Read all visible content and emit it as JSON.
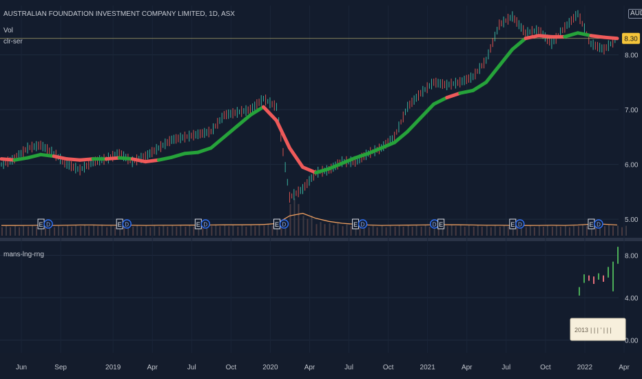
{
  "header": {
    "symbol": "AUSTRALIAN FOUNDATION INVESTMENT COMPANY LIMITED, 1D, ASX",
    "indicator_1": "Vol",
    "indicator_2": "clr-ser",
    "currency": "AUD"
  },
  "lower_pane": {
    "title": "mans-lng-rng",
    "tooltip_text": "2013",
    "tooltip_marks": "| | | '  |  |  |"
  },
  "colors": {
    "background": "#131c2d",
    "grid": "#1f2b3e",
    "rising": "#26a33a",
    "falling": "#ef5a5a",
    "volume_ma": "#f0a060",
    "price_line": "#cfc37a",
    "price_badge": "#f5c53a"
  },
  "chart_data": [
    {
      "type": "line",
      "title": "",
      "ylim": [
        4.7,
        8.9
      ],
      "y_ticks": [
        "8.00",
        "7.00",
        "6.00",
        "5.00"
      ],
      "y_tick_values": [
        8.0,
        7.0,
        6.0,
        5.0
      ],
      "x_ticks": [
        "Jun",
        "Sep",
        "2019",
        "Apr",
        "Jul",
        "Oct",
        "2020",
        "Apr",
        "Jul",
        "Oct",
        "2021",
        "Apr",
        "Jul",
        "Oct",
        "2022",
        "Apr"
      ],
      "last_price": "8.30",
      "series": [
        {
          "role": "price",
          "x": [
            "2018-05",
            "2018-06",
            "2018-07",
            "2018-08",
            "2018-09",
            "2018-10",
            "2018-11",
            "2018-12",
            "2019-01",
            "2019-02",
            "2019-03",
            "2019-04",
            "2019-05",
            "2019-06",
            "2019-07",
            "2019-08",
            "2019-09",
            "2019-10",
            "2019-11",
            "2019-12",
            "2020-01",
            "2020-02",
            "2020-03",
            "2020-04",
            "2020-05",
            "2020-06",
            "2020-07",
            "2020-08",
            "2020-09",
            "2020-10",
            "2020-11",
            "2020-12",
            "2021-01",
            "2021-02",
            "2021-03",
            "2021-04",
            "2021-05",
            "2021-06",
            "2021-07",
            "2021-08",
            "2021-09",
            "2021-10",
            "2021-11",
            "2021-12",
            "2022-01",
            "2022-02",
            "2022-03",
            "2022-04"
          ],
          "values": [
            6.0,
            6.1,
            6.3,
            6.35,
            6.2,
            6.0,
            5.9,
            6.05,
            6.1,
            6.2,
            6.05,
            6.15,
            6.3,
            6.45,
            6.5,
            6.55,
            6.6,
            6.9,
            6.95,
            7.0,
            7.2,
            7.05,
            5.4,
            5.55,
            5.85,
            5.9,
            6.05,
            6.05,
            6.2,
            6.3,
            6.5,
            7.05,
            7.3,
            7.5,
            7.45,
            7.5,
            7.6,
            7.9,
            8.55,
            8.7,
            8.4,
            8.45,
            8.2,
            8.5,
            8.75,
            8.2,
            8.1,
            8.3
          ]
        },
        {
          "role": "smoothed",
          "x": [
            "2018-05",
            "2018-06",
            "2018-07",
            "2018-08",
            "2018-09",
            "2018-10",
            "2018-11",
            "2018-12",
            "2019-01",
            "2019-02",
            "2019-03",
            "2019-04",
            "2019-05",
            "2019-06",
            "2019-07",
            "2019-08",
            "2019-09",
            "2019-10",
            "2019-11",
            "2019-12",
            "2020-01",
            "2020-02",
            "2020-03",
            "2020-04",
            "2020-05",
            "2020-06",
            "2020-07",
            "2020-08",
            "2020-09",
            "2020-10",
            "2020-11",
            "2020-12",
            "2021-01",
            "2021-02",
            "2021-03",
            "2021-04",
            "2021-05",
            "2021-06",
            "2021-07",
            "2021-08",
            "2021-09",
            "2021-10",
            "2021-11",
            "2021-12",
            "2022-01",
            "2022-02",
            "2022-03",
            "2022-04"
          ],
          "values": [
            6.1,
            6.08,
            6.12,
            6.18,
            6.15,
            6.1,
            6.08,
            6.1,
            6.1,
            6.12,
            6.1,
            6.05,
            6.08,
            6.13,
            6.2,
            6.22,
            6.3,
            6.5,
            6.7,
            6.9,
            7.05,
            6.8,
            6.3,
            5.95,
            5.85,
            5.92,
            6.02,
            6.12,
            6.2,
            6.3,
            6.4,
            6.6,
            6.85,
            7.1,
            7.22,
            7.3,
            7.35,
            7.5,
            7.8,
            8.1,
            8.3,
            8.35,
            8.33,
            8.33,
            8.4,
            8.35,
            8.32,
            8.3
          ],
          "trend": [
            "falling",
            "rising",
            "rising",
            "rising",
            "falling",
            "falling",
            "falling",
            "rising",
            "falling",
            "rising",
            "falling",
            "falling",
            "rising",
            "rising",
            "rising",
            "rising",
            "rising",
            "rising",
            "rising",
            "rising",
            "falling",
            "falling",
            "falling",
            "falling",
            "rising",
            "rising",
            "rising",
            "rising",
            "rising",
            "rising",
            "rising",
            "rising",
            "rising",
            "rising",
            "falling",
            "rising",
            "rising",
            "rising",
            "rising",
            "rising",
            "falling",
            "falling",
            "falling",
            "rising",
            "rising",
            "falling",
            "falling",
            "falling"
          ]
        }
      ]
    },
    {
      "type": "bar",
      "title": "",
      "series": [
        {
          "role": "volume",
          "x": [
            "2018-05",
            "2018-06",
            "2018-07",
            "2018-08",
            "2018-09",
            "2018-10",
            "2018-11",
            "2018-12",
            "2019-01",
            "2019-02",
            "2019-03",
            "2019-04",
            "2019-05",
            "2019-06",
            "2019-07",
            "2019-08",
            "2019-09",
            "2019-10",
            "2019-11",
            "2019-12",
            "2020-01",
            "2020-02",
            "2020-03",
            "2020-04",
            "2020-05",
            "2020-06",
            "2020-07",
            "2020-08",
            "2020-09",
            "2020-10",
            "2020-11",
            "2020-12",
            "2021-01",
            "2021-02",
            "2021-03",
            "2021-04",
            "2021-05",
            "2021-06",
            "2021-07",
            "2021-08",
            "2021-09",
            "2021-10",
            "2021-11",
            "2021-12",
            "2022-01",
            "2022-02",
            "2022-03",
            "2022-04"
          ],
          "values": [
            0.8,
            0.8,
            0.85,
            0.85,
            0.8,
            0.85,
            0.9,
            0.9,
            0.8,
            0.85,
            0.85,
            0.8,
            0.85,
            0.85,
            0.85,
            0.85,
            0.9,
            0.9,
            0.85,
            0.9,
            0.95,
            1.1,
            3.0,
            1.6,
            1.1,
            1.0,
            0.9,
            0.85,
            0.8,
            0.8,
            0.85,
            0.85,
            0.85,
            0.9,
            0.9,
            0.85,
            0.85,
            0.8,
            0.85,
            0.8,
            0.8,
            0.85,
            0.85,
            0.8,
            0.9,
            1.0,
            0.9,
            0.8
          ]
        },
        {
          "role": "volume-ma",
          "x": [
            "2018-05",
            "2018-06",
            "2018-07",
            "2018-08",
            "2018-09",
            "2018-10",
            "2018-11",
            "2018-12",
            "2019-01",
            "2019-02",
            "2019-03",
            "2019-04",
            "2019-05",
            "2019-06",
            "2019-07",
            "2019-08",
            "2019-09",
            "2019-10",
            "2019-11",
            "2019-12",
            "2020-01",
            "2020-02",
            "2020-03",
            "2020-04",
            "2020-05",
            "2020-06",
            "2020-07",
            "2020-08",
            "2020-09",
            "2020-10",
            "2020-11",
            "2020-12",
            "2021-01",
            "2021-02",
            "2021-03",
            "2021-04",
            "2021-05",
            "2021-06",
            "2021-07",
            "2021-08",
            "2021-09",
            "2021-10",
            "2021-11",
            "2021-12",
            "2022-01",
            "2022-02",
            "2022-03",
            "2022-04"
          ],
          "values": [
            0.82,
            0.82,
            0.83,
            0.84,
            0.83,
            0.84,
            0.86,
            0.86,
            0.84,
            0.84,
            0.84,
            0.83,
            0.84,
            0.84,
            0.85,
            0.85,
            0.86,
            0.87,
            0.87,
            0.88,
            0.9,
            0.98,
            1.6,
            1.8,
            1.4,
            1.15,
            1.0,
            0.92,
            0.86,
            0.83,
            0.84,
            0.85,
            0.86,
            0.87,
            0.88,
            0.87,
            0.86,
            0.84,
            0.84,
            0.83,
            0.82,
            0.83,
            0.84,
            0.83,
            0.86,
            0.92,
            0.92,
            0.86
          ]
        }
      ],
      "event_markers": [
        {
          "x": "2018-08",
          "labels": [
            "E",
            "D"
          ]
        },
        {
          "x": "2019-02",
          "labels": [
            "E",
            "D"
          ]
        },
        {
          "x": "2019-08",
          "labels": [
            "E",
            "D"
          ]
        },
        {
          "x": "2020-02",
          "labels": [
            "E",
            "D"
          ]
        },
        {
          "x": "2020-08",
          "labels": [
            "E",
            "D"
          ]
        },
        {
          "x": "2021-02",
          "labels": [
            "D",
            "E"
          ]
        },
        {
          "x": "2021-08",
          "labels": [
            "E",
            "D"
          ]
        },
        {
          "x": "2022-02",
          "labels": [
            "E",
            "D"
          ]
        }
      ]
    },
    {
      "type": "bar",
      "title": "",
      "ylim": [
        -1.2,
        9.2
      ],
      "y_ticks": [
        "8.00",
        "4.00",
        "0.00"
      ],
      "y_tick_values": [
        8.0,
        4.0,
        0.0
      ],
      "series": [
        {
          "role": "range",
          "low": [
            4.2,
            5.4,
            5.6,
            5.3,
            5.7,
            5.5,
            5.9,
            4.6,
            7.2
          ],
          "high": [
            5.0,
            6.2,
            6.1,
            6.0,
            6.3,
            6.1,
            6.9,
            7.4,
            8.8
          ],
          "direction": [
            "up",
            "up",
            "down",
            "down",
            "up",
            "down",
            "up",
            "up",
            "up"
          ]
        }
      ]
    }
  ]
}
